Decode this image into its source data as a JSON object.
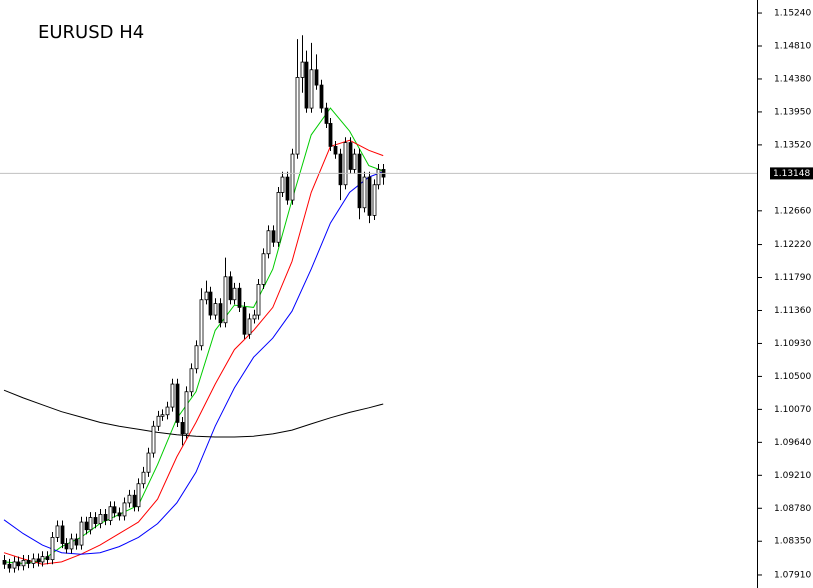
{
  "chart_data": {
    "type": "candlestick",
    "title": "EURUSD H4",
    "open": [
      1.081,
      1.0805,
      1.08,
      1.0808,
      1.0803,
      1.081,
      1.0806,
      1.0812,
      1.0808,
      1.0815,
      1.0811,
      1.084,
      1.0855,
      1.0832,
      1.0825,
      1.0838,
      1.083,
      1.086,
      1.085,
      1.0866,
      1.0858,
      1.087,
      1.0862,
      1.088,
      1.0872,
      1.0868,
      1.0885,
      1.0895,
      1.088,
      1.091,
      1.0925,
      1.095,
      1.0985,
      1.0998,
      1.1,
      1.101,
      1.104,
      1.099,
      1.0975,
      1.103,
      1.106,
      1.109,
      1.115,
      1.116,
      1.113,
      1.1145,
      1.112,
      1.118,
      1.115,
      1.1165,
      1.114,
      1.1105,
      1.1125,
      1.113,
      1.117,
      1.121,
      1.124,
      1.1225,
      1.129,
      1.131,
      1.128,
      1.134,
      1.144,
      1.146,
      1.14,
      1.145,
      1.143,
      1.14,
      1.138,
      1.135,
      1.134,
      1.13,
      1.1355,
      1.132,
      1.134,
      1.127,
      1.131,
      1.126,
      1.13,
      1.132
    ],
    "high": [
      1.0817,
      1.0812,
      1.0815,
      1.0815,
      1.0817,
      1.0817,
      1.0819,
      1.0819,
      1.0822,
      1.0822,
      1.0847,
      1.0862,
      1.0862,
      1.0839,
      1.0845,
      1.0845,
      1.0867,
      1.0867,
      1.0873,
      1.0873,
      1.0877,
      1.0877,
      1.0887,
      1.0887,
      1.0879,
      1.0892,
      1.0902,
      1.0902,
      1.0917,
      1.0932,
      1.0957,
      1.0992,
      1.1005,
      1.1007,
      1.1017,
      1.1047,
      1.1047,
      1.0997,
      1.1037,
      1.1067,
      1.1097,
      1.1165,
      1.1175,
      1.1167,
      1.1152,
      1.1152,
      1.1205,
      1.1187,
      1.1172,
      1.1172,
      1.1147,
      1.1132,
      1.1137,
      1.1177,
      1.1217,
      1.1247,
      1.1247,
      1.1297,
      1.1317,
      1.1317,
      1.1347,
      1.149,
      1.1495,
      1.1475,
      1.1485,
      1.147,
      1.1437,
      1.1407,
      1.1387,
      1.1357,
      1.1347,
      1.1362,
      1.1362,
      1.1347,
      1.1347,
      1.1317,
      1.1317,
      1.1307,
      1.1327,
      1.1327
    ],
    "low": [
      1.0799,
      1.0794,
      1.0794,
      1.0797,
      1.0797,
      1.08,
      1.08,
      1.0802,
      1.0802,
      1.0805,
      1.0805,
      1.0834,
      1.0826,
      1.0819,
      1.0819,
      1.0824,
      1.0824,
      1.0844,
      1.0844,
      1.0852,
      1.0852,
      1.0856,
      1.0856,
      1.0866,
      1.0862,
      1.0862,
      1.0879,
      1.0874,
      1.0874,
      1.0904,
      1.0919,
      1.0944,
      1.0979,
      1.0992,
      1.0994,
      1.1004,
      1.0984,
      1.096,
      1.0969,
      1.1024,
      1.1054,
      1.1084,
      1.1144,
      1.1124,
      1.1124,
      1.1114,
      1.1114,
      1.1144,
      1.1144,
      1.1134,
      1.1099,
      1.1099,
      1.1119,
      1.1124,
      1.1164,
      1.1204,
      1.1219,
      1.1219,
      1.1284,
      1.1274,
      1.1274,
      1.1334,
      1.142,
      1.1394,
      1.1394,
      1.1424,
      1.1394,
      1.1374,
      1.1344,
      1.1334,
      1.128,
      1.1294,
      1.1314,
      1.1314,
      1.1255,
      1.1264,
      1.125,
      1.1254,
      1.1294,
      1.13
    ],
    "close": [
      1.0805,
      1.08,
      1.0808,
      1.0803,
      1.081,
      1.0806,
      1.0812,
      1.0808,
      1.0815,
      1.0811,
      1.084,
      1.0855,
      1.0832,
      1.0825,
      1.0838,
      1.083,
      1.086,
      1.085,
      1.0866,
      1.0858,
      1.087,
      1.0862,
      1.088,
      1.0872,
      1.0868,
      1.0885,
      1.0895,
      1.088,
      1.091,
      1.0925,
      1.095,
      1.0985,
      1.0998,
      1.1,
      1.101,
      1.104,
      1.099,
      1.0975,
      1.103,
      1.106,
      1.109,
      1.115,
      1.116,
      1.113,
      1.1145,
      1.112,
      1.118,
      1.115,
      1.1165,
      1.114,
      1.1105,
      1.1125,
      1.113,
      1.117,
      1.121,
      1.124,
      1.1225,
      1.129,
      1.131,
      1.128,
      1.134,
      1.144,
      1.146,
      1.14,
      1.145,
      1.143,
      1.14,
      1.138,
      1.135,
      1.134,
      1.13,
      1.1355,
      1.132,
      1.134,
      1.127,
      1.131,
      1.126,
      1.13,
      1.132,
      1.131
    ],
    "series": [
      {
        "color": "#00cc00",
        "x": [
          0,
          4,
          8,
          12,
          16,
          20,
          24,
          28,
          32,
          36,
          40,
          44,
          48,
          52,
          56,
          60,
          64,
          68,
          72,
          76,
          79
        ],
        "values": [
          1.0808,
          1.0806,
          1.081,
          1.0828,
          1.084,
          1.0858,
          1.087,
          1.0882,
          1.0935,
          1.0995,
          1.103,
          1.111,
          1.1143,
          1.114,
          1.119,
          1.128,
          1.1365,
          1.14,
          1.137,
          1.1325,
          1.1318
        ]
      },
      {
        "color": "#ff0000",
        "x": [
          0,
          4,
          8,
          12,
          16,
          20,
          24,
          28,
          32,
          36,
          40,
          44,
          48,
          52,
          56,
          60,
          64,
          68,
          72,
          76,
          79
        ],
        "values": [
          1.082,
          1.0812,
          1.0805,
          1.0808,
          1.0818,
          1.083,
          1.0845,
          1.086,
          1.089,
          1.0945,
          1.099,
          1.104,
          1.1085,
          1.111,
          1.114,
          1.12,
          1.129,
          1.135,
          1.1358,
          1.1345,
          1.1338
        ]
      },
      {
        "color": "#0000ff",
        "x": [
          0,
          4,
          8,
          12,
          16,
          20,
          24,
          28,
          32,
          36,
          40,
          44,
          48,
          52,
          56,
          60,
          64,
          68,
          72,
          76,
          79
        ],
        "values": [
          1.0863,
          1.0845,
          1.083,
          1.082,
          1.0818,
          1.082,
          1.0828,
          1.084,
          1.0858,
          1.0885,
          1.0925,
          1.0985,
          1.1035,
          1.1075,
          1.11,
          1.1135,
          1.119,
          1.125,
          1.129,
          1.131,
          1.1317
        ]
      },
      {
        "color": "#000000",
        "x": [
          0,
          4,
          8,
          12,
          16,
          20,
          24,
          28,
          32,
          36,
          40,
          44,
          48,
          52,
          56,
          60,
          64,
          68,
          72,
          76,
          79
        ],
        "values": [
          1.1032,
          1.1022,
          1.1013,
          1.1004,
          1.0997,
          1.099,
          1.0985,
          1.0981,
          1.0977,
          1.0974,
          1.0972,
          1.0971,
          1.0971,
          1.0972,
          1.0975,
          1.098,
          1.0988,
          1.0996,
          1.1003,
          1.1009,
          1.1014
        ]
      }
    ],
    "current_price": 1.13148,
    "ylim": [
      1.0774,
      1.1541
    ],
    "yticks": [
      {
        "value": 1.1524,
        "label": "1.15240"
      },
      {
        "value": 1.1481,
        "label": "1.14810"
      },
      {
        "value": 1.1438,
        "label": "1.14380"
      },
      {
        "value": 1.1395,
        "label": "1.13950"
      },
      {
        "value": 1.1352,
        "label": "1.13520"
      },
      {
        "value": 1.1266,
        "label": "1.12660"
      },
      {
        "value": 1.1222,
        "label": "1.12220"
      },
      {
        "value": 1.1179,
        "label": "1.11790"
      },
      {
        "value": 1.1136,
        "label": "1.11360"
      },
      {
        "value": 1.1093,
        "label": "1.10930"
      },
      {
        "value": 1.105,
        "label": "1.10500"
      },
      {
        "value": 1.1007,
        "label": "1.10070"
      },
      {
        "value": 1.0964,
        "label": "1.09640"
      },
      {
        "value": 1.0921,
        "label": "1.09210"
      },
      {
        "value": 1.0878,
        "label": "1.08780"
      },
      {
        "value": 1.0835,
        "label": "1.08350"
      },
      {
        "value": 1.0791,
        "label": "1.07910"
      }
    ],
    "bull_color": "#ffffff",
    "bear_color": "#000000"
  }
}
